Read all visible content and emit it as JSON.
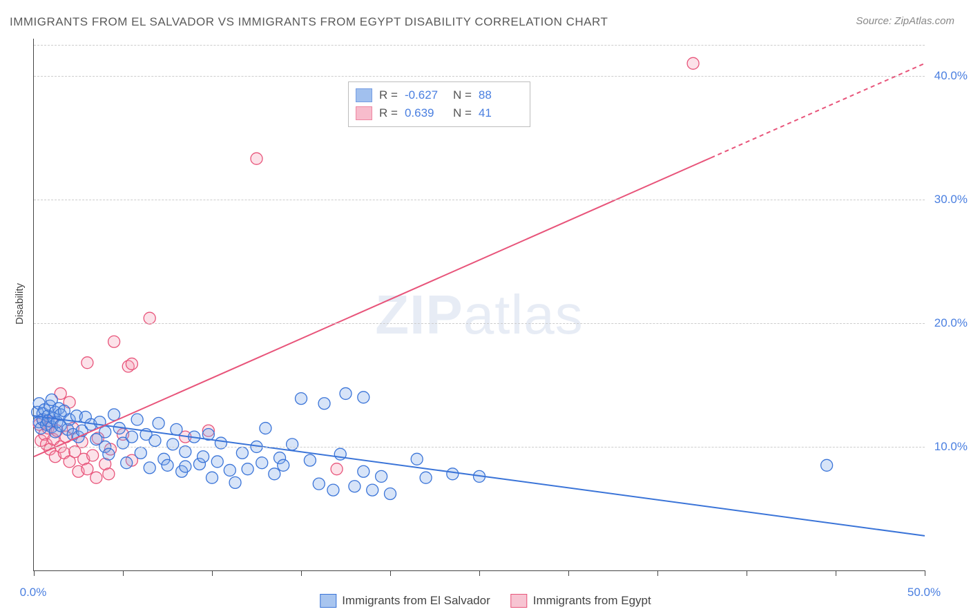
{
  "title": "IMMIGRANTS FROM EL SALVADOR VS IMMIGRANTS FROM EGYPT DISABILITY CORRELATION CHART",
  "source_label": "Source: ",
  "source_name": "ZipAtlas.com",
  "watermark": {
    "zip": "ZIP",
    "atlas": "atlas"
  },
  "y_axis_label": "Disability",
  "chart": {
    "type": "scatter",
    "background_color": "#ffffff",
    "grid_color": "#cccccc",
    "axis_color": "#444444",
    "tick_label_color": "#4a7fe0",
    "tick_fontsize": 17,
    "xlim": [
      0,
      50
    ],
    "ylim": [
      0,
      43
    ],
    "x_ticks": [
      0,
      5,
      10,
      15,
      20,
      25,
      30,
      35,
      40,
      45,
      50
    ],
    "x_tick_labels": {
      "0": "0.0%",
      "50": "50.0%"
    },
    "y_gridlines": [
      10,
      20,
      30,
      40,
      42.5
    ],
    "y_tick_labels": {
      "10": "10.0%",
      "20": "20.0%",
      "30": "30.0%",
      "40": "40.0%"
    },
    "marker_radius": 8.5,
    "marker_stroke_width": 1.3,
    "marker_fill_opacity": 0.3,
    "line_width": 2,
    "series": [
      {
        "name": "Immigrants from El Salvador",
        "color_stroke": "#3a74d8",
        "color_fill": "#7aa6e8",
        "R_label": "R =",
        "R": "-0.627",
        "N_label": "N =",
        "N": "88",
        "trend": {
          "x1": 0,
          "y1": 12.5,
          "x2": 50,
          "y2": 2.8,
          "dashed_from_x": null
        },
        "points": [
          [
            0.2,
            12.8
          ],
          [
            0.3,
            12.0
          ],
          [
            0.3,
            13.5
          ],
          [
            0.4,
            11.5
          ],
          [
            0.5,
            12.7
          ],
          [
            0.5,
            12.2
          ],
          [
            0.6,
            13.0
          ],
          [
            0.7,
            11.8
          ],
          [
            0.8,
            12.5
          ],
          [
            0.8,
            12.1
          ],
          [
            0.9,
            13.3
          ],
          [
            1.0,
            11.6
          ],
          [
            1.0,
            13.8
          ],
          [
            1.1,
            12.3
          ],
          [
            1.2,
            12.8
          ],
          [
            1.2,
            11.2
          ],
          [
            1.3,
            12.0
          ],
          [
            1.4,
            13.1
          ],
          [
            1.5,
            11.7
          ],
          [
            1.5,
            12.6
          ],
          [
            1.7,
            12.9
          ],
          [
            1.9,
            11.4
          ],
          [
            2.0,
            12.2
          ],
          [
            2.2,
            11.0
          ],
          [
            2.4,
            12.5
          ],
          [
            2.5,
            10.8
          ],
          [
            2.7,
            11.3
          ],
          [
            2.9,
            12.4
          ],
          [
            3.2,
            11.8
          ],
          [
            3.5,
            10.6
          ],
          [
            3.7,
            12.0
          ],
          [
            4.0,
            11.2
          ],
          [
            4.0,
            10.0
          ],
          [
            4.2,
            9.4
          ],
          [
            4.5,
            12.6
          ],
          [
            4.8,
            11.5
          ],
          [
            5.0,
            10.3
          ],
          [
            5.2,
            8.7
          ],
          [
            5.5,
            10.8
          ],
          [
            5.8,
            12.2
          ],
          [
            6.0,
            9.5
          ],
          [
            6.3,
            11.0
          ],
          [
            6.5,
            8.3
          ],
          [
            6.8,
            10.5
          ],
          [
            7.0,
            11.9
          ],
          [
            7.3,
            9.0
          ],
          [
            7.5,
            8.5
          ],
          [
            7.8,
            10.2
          ],
          [
            8.0,
            11.4
          ],
          [
            8.3,
            8.0
          ],
          [
            8.5,
            9.6
          ],
          [
            8.5,
            8.4
          ],
          [
            9.0,
            10.8
          ],
          [
            9.3,
            8.6
          ],
          [
            9.5,
            9.2
          ],
          [
            9.8,
            11.0
          ],
          [
            10.0,
            7.5
          ],
          [
            10.3,
            8.8
          ],
          [
            10.5,
            10.3
          ],
          [
            11.0,
            8.1
          ],
          [
            11.3,
            7.1
          ],
          [
            11.7,
            9.5
          ],
          [
            12.0,
            8.2
          ],
          [
            12.5,
            10.0
          ],
          [
            12.8,
            8.7
          ],
          [
            13.0,
            11.5
          ],
          [
            13.5,
            7.8
          ],
          [
            13.8,
            9.1
          ],
          [
            14.0,
            8.5
          ],
          [
            14.5,
            10.2
          ],
          [
            15.0,
            13.9
          ],
          [
            15.5,
            8.9
          ],
          [
            16.0,
            7.0
          ],
          [
            16.3,
            13.5
          ],
          [
            16.8,
            6.5
          ],
          [
            17.2,
            9.4
          ],
          [
            17.5,
            14.3
          ],
          [
            18.0,
            6.8
          ],
          [
            18.5,
            8.0
          ],
          [
            18.5,
            14.0
          ],
          [
            19.0,
            6.5
          ],
          [
            19.5,
            7.6
          ],
          [
            20.0,
            6.2
          ],
          [
            21.5,
            9.0
          ],
          [
            22.0,
            7.5
          ],
          [
            23.5,
            7.8
          ],
          [
            25.0,
            7.6
          ],
          [
            44.5,
            8.5
          ]
        ]
      },
      {
        "name": "Immigrants from Egypt",
        "color_stroke": "#e8547a",
        "color_fill": "#f4a0b7",
        "R_label": "R =",
        "R": "0.639",
        "N_label": "N =",
        "N": "41",
        "trend": {
          "x1": 0,
          "y1": 9.2,
          "x2": 50,
          "y2": 41.0,
          "dashed_from_x": 38
        },
        "points": [
          [
            0.3,
            11.8
          ],
          [
            0.4,
            10.5
          ],
          [
            0.5,
            12.2
          ],
          [
            0.6,
            11.0
          ],
          [
            0.7,
            10.2
          ],
          [
            0.8,
            11.5
          ],
          [
            0.9,
            9.8
          ],
          [
            1.0,
            12.0
          ],
          [
            1.1,
            10.6
          ],
          [
            1.2,
            9.2
          ],
          [
            1.3,
            11.3
          ],
          [
            1.5,
            10.0
          ],
          [
            1.5,
            14.3
          ],
          [
            1.7,
            9.5
          ],
          [
            1.8,
            10.8
          ],
          [
            2.0,
            8.8
          ],
          [
            2.0,
            13.6
          ],
          [
            2.2,
            11.5
          ],
          [
            2.3,
            9.6
          ],
          [
            2.5,
            8.0
          ],
          [
            2.7,
            10.4
          ],
          [
            2.8,
            9.0
          ],
          [
            3.0,
            8.2
          ],
          [
            3.0,
            16.8
          ],
          [
            3.3,
            9.3
          ],
          [
            3.5,
            7.5
          ],
          [
            3.6,
            10.7
          ],
          [
            4.0,
            8.6
          ],
          [
            4.2,
            7.8
          ],
          [
            4.3,
            9.8
          ],
          [
            4.5,
            18.5
          ],
          [
            5.0,
            11.0
          ],
          [
            5.3,
            16.5
          ],
          [
            5.5,
            8.9
          ],
          [
            5.5,
            16.7
          ],
          [
            6.5,
            20.4
          ],
          [
            8.5,
            10.8
          ],
          [
            9.8,
            11.3
          ],
          [
            12.5,
            33.3
          ],
          [
            17.0,
            8.2
          ],
          [
            37.0,
            41.0
          ]
        ]
      }
    ]
  },
  "bottom_legend": [
    {
      "label": "Immigrants from El Salvador",
      "fill": "#a8c5ef",
      "stroke": "#3a74d8"
    },
    {
      "label": "Immigrants from Egypt",
      "fill": "#f7c4d2",
      "stroke": "#e8547a"
    }
  ]
}
